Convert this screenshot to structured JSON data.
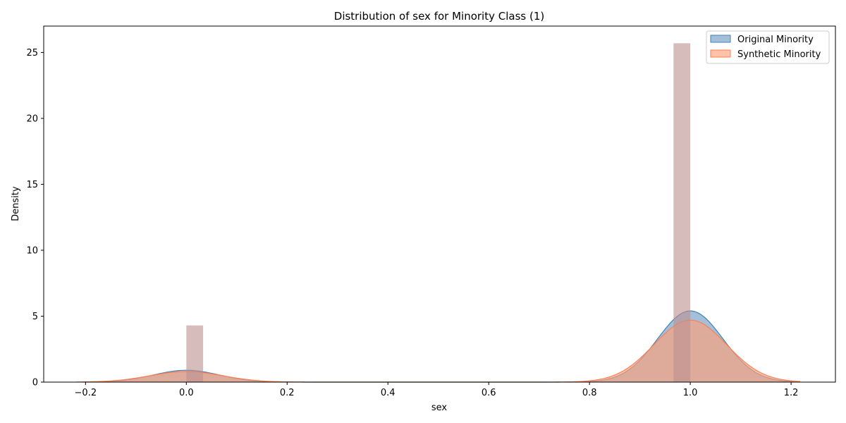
{
  "chart_data": {
    "type": "area",
    "title": "Distribution of sex for Minority Class (1)",
    "xlabel": "sex",
    "ylabel": "Density",
    "xlim": [
      -0.283,
      1.288
    ],
    "ylim": [
      0,
      27
    ],
    "xticks": [
      -0.2,
      0.0,
      0.2,
      0.4,
      0.6,
      0.8,
      1.0,
      1.2
    ],
    "xtick_labels": [
      "−0.2",
      "0.0",
      "0.2",
      "0.4",
      "0.6",
      "0.8",
      "1.0",
      "1.2"
    ],
    "yticks": [
      0,
      5,
      10,
      15,
      20,
      25
    ],
    "ytick_labels": [
      "0",
      "5",
      "10",
      "15",
      "20",
      "25"
    ],
    "legend_position": "top-right",
    "histogram": {
      "bin_width": 0.0333,
      "bars": [
        {
          "x0": 0.0,
          "x1": 0.0333,
          "value": 4.3
        },
        {
          "x0": 0.9667,
          "x1": 1.0,
          "value": 25.7
        }
      ],
      "color": "#bc8f8f",
      "opacity": 0.6
    },
    "series": [
      {
        "name": "Original Minority",
        "color": "#4682b4",
        "fill": "#4682b4",
        "opacity": 0.5,
        "x_range": [
          -0.206,
          1.206
        ],
        "components": [
          {
            "mu": 0.0,
            "sigma": 0.065,
            "peak": 0.9
          },
          {
            "mu": 1.0,
            "sigma": 0.065,
            "peak": 5.4
          }
        ]
      },
      {
        "name": "Synthetic Minority",
        "color": "#ff7f50",
        "fill": "#ffa07a",
        "opacity": 0.65,
        "x_range": [
          -0.218,
          1.218
        ],
        "components": [
          {
            "mu": 0.0,
            "sigma": 0.072,
            "peak": 0.8
          },
          {
            "mu": 1.0,
            "sigma": 0.072,
            "peak": 4.7
          }
        ]
      }
    ]
  }
}
